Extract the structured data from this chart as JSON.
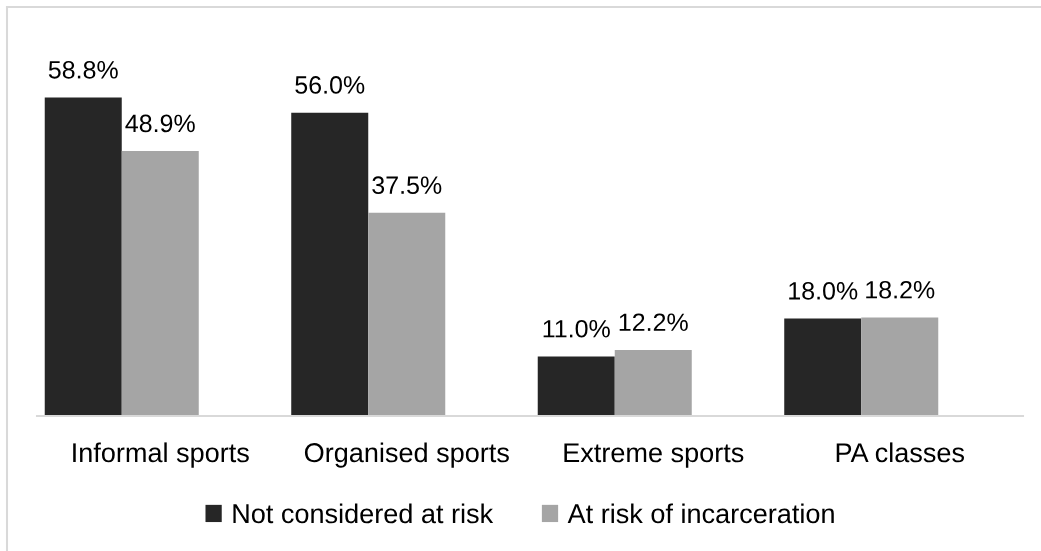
{
  "chart_data": {
    "type": "bar",
    "categories": [
      "Informal sports",
      "Organised sports",
      "Extreme sports",
      "PA classes"
    ],
    "series": [
      {
        "name": "Not considered at risk",
        "color": "#262626",
        "values": [
          58.8,
          56.0,
          11.0,
          18.0
        ],
        "value_labels": [
          "58.8%",
          "56.0%",
          "11.0%",
          "18.0%"
        ]
      },
      {
        "name": "At risk of incarceration",
        "color": "#a5a5a5",
        "values": [
          48.9,
          37.5,
          12.2,
          18.2
        ],
        "value_labels": [
          "48.9%",
          "37.5%",
          "12.2%",
          "18.2%"
        ]
      }
    ],
    "tick_labels": "x",
    "legend": "bottom"
  }
}
